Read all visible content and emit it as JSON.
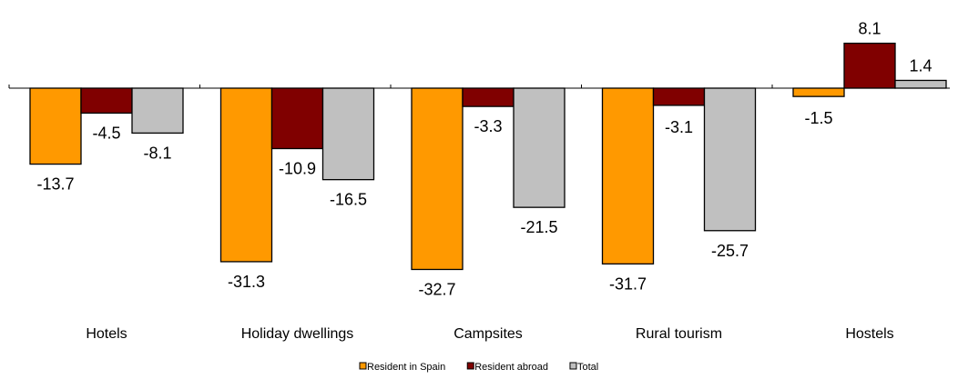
{
  "chart_data": {
    "type": "bar",
    "categories": [
      "Hotels",
      "Holiday dwellings",
      "Campsites",
      "Rural tourism",
      "Hostels"
    ],
    "series": [
      {
        "name": "Resident in Spain",
        "color": "#ff9900",
        "values": [
          -13.7,
          -31.3,
          -32.7,
          -31.7,
          -1.5
        ]
      },
      {
        "name": "Resident abroad",
        "color": "#800000",
        "values": [
          -4.5,
          -10.9,
          -3.3,
          -3.1,
          8.1
        ]
      },
      {
        "name": "Total",
        "color": "#c0c0c0",
        "values": [
          -8.1,
          -16.5,
          -21.5,
          -25.7,
          1.4
        ]
      }
    ],
    "labels": [
      [
        "-13.7",
        "-31.3",
        "-32.7",
        "-31.7",
        "-1.5"
      ],
      [
        "-4.5",
        "-10.9",
        "-3.3",
        "-3.1",
        "8.1"
      ],
      [
        "-8.1",
        "-16.5",
        "-21.5",
        "-25.7",
        "1.4"
      ]
    ],
    "title": "",
    "xlabel": "",
    "ylabel": "",
    "ylim": [
      -33,
      8.5
    ],
    "grid": false,
    "legend": "bottom"
  }
}
